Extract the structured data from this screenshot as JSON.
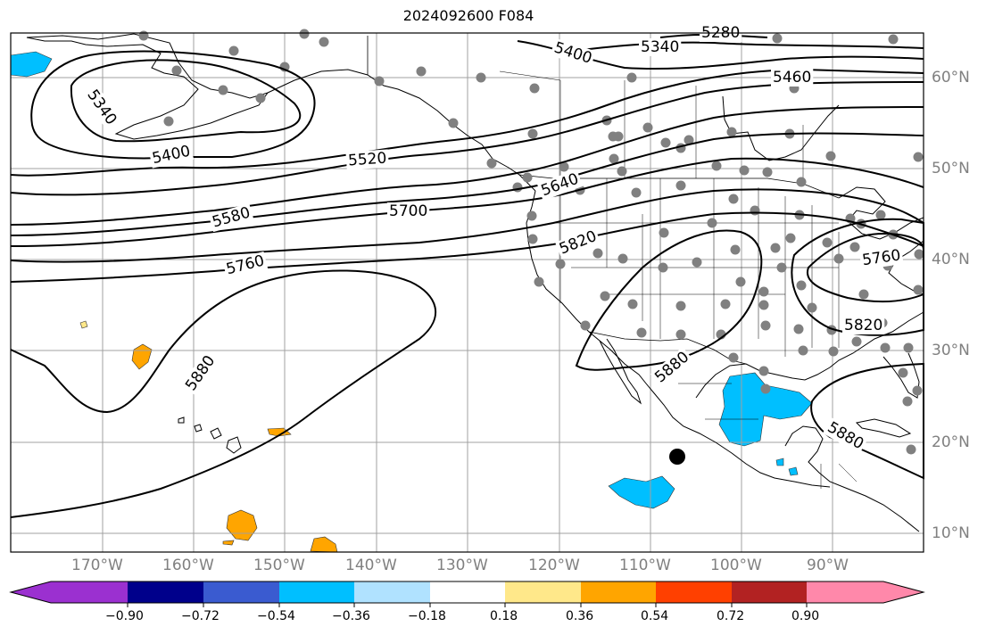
{
  "title": "2024092600 F084",
  "lon_labels": [
    "170°W",
    "160°W",
    "150°W",
    "140°W",
    "130°W",
    "120°W",
    "110°W",
    "100°W",
    "90°W"
  ],
  "lat_labels": [
    "60°N",
    "50°N",
    "40°N",
    "30°N",
    "20°N",
    "10°N"
  ],
  "contour_labels": [
    "5340",
    "5400",
    "5520",
    "5580",
    "5700",
    "5760",
    "5880",
    "5640",
    "5820",
    "5880",
    "5400",
    "5340",
    "5280",
    "5460",
    "5760",
    "5820",
    "5880"
  ],
  "colorbar": {
    "ticks": [
      "−0.90",
      "−0.72",
      "−0.54",
      "−0.36",
      "−0.18",
      "0.18",
      "0.36",
      "0.54",
      "0.72",
      "0.90"
    ],
    "colors": [
      "#9b30d0",
      "#00008b",
      "#3a5bd0",
      "#00bfff",
      "#b0e2ff",
      "#ffffff",
      "#ffe88a",
      "#ffa500",
      "#ff4000",
      "#b22222",
      "#ff88aa"
    ]
  },
  "colors": {
    "land_outline": "#000000",
    "grid": "#a0a0a0",
    "station": "#808080",
    "contour": "#000000"
  }
}
